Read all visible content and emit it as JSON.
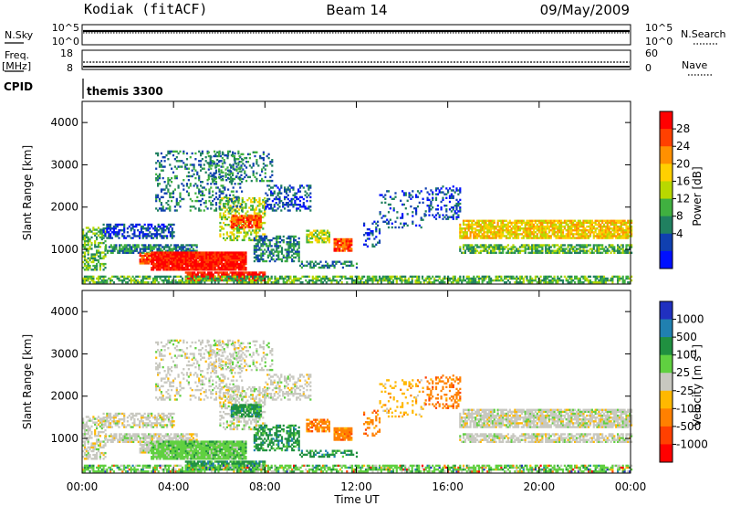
{
  "header": {
    "station": "Kodiak (fitACF)",
    "beam": "Beam 14",
    "date": "09/May/2009"
  },
  "top_panels": {
    "nsky_label": "N.Sky",
    "nsky_ticks": [
      "10^5",
      "10^0"
    ],
    "nsearch_label": "N.Search",
    "nsearch_ticks": [
      "10^5",
      "10^0"
    ],
    "freq_label_1": "Freq.",
    "freq_label_2": "[MHz]",
    "freq_ticks": [
      "18",
      "8"
    ],
    "nave_label": "Nave",
    "nave_ticks": [
      "60",
      "0"
    ],
    "cpid_label": "CPID",
    "cpid_value": "themis 3300"
  },
  "colors": {
    "power": [
      "#0010ff",
      "#1040b0",
      "#208060",
      "#40b040",
      "#b8d800",
      "#ffd000",
      "#ff9000",
      "#ff4000",
      "#ff0000"
    ],
    "velocity": [
      "#ff0000",
      "#ff4000",
      "#ff8000",
      "#ffb800",
      "#c8c8c0",
      "#60d040",
      "#209040",
      "#2080b0",
      "#2030c0"
    ]
  },
  "chart_data": [
    {
      "type": "heatmap",
      "quantity": "Power",
      "ylabel": "Slant Range [km]",
      "ylim": [
        180,
        4500
      ],
      "yticks": [
        "1000",
        "2000",
        "3000",
        "4000"
      ],
      "colorbar_label": "Power [dB]",
      "colorbar_ticks": [
        "4",
        "8",
        "12",
        "16",
        "20",
        "24",
        "28"
      ],
      "colorbar_range": [
        0,
        32
      ]
    },
    {
      "type": "heatmap",
      "quantity": "Velocity",
      "ylabel": "Slant Range [km]",
      "ylim": [
        180,
        4500
      ],
      "yticks": [
        "1000",
        "2000",
        "3000",
        "4000"
      ],
      "xlabel": "Time UT",
      "xticks": [
        "00:00",
        "04:00",
        "08:00",
        "12:00",
        "16:00",
        "20:00",
        "00:00"
      ],
      "colorbar_label": "Velocity [m s",
      "colorbar_label_sup": "-1",
      "colorbar_label_end": "]",
      "colorbar_ticks": [
        "1000",
        "500",
        "100",
        "25",
        "-25",
        "-100",
        "-500",
        "-1000"
      ]
    }
  ]
}
